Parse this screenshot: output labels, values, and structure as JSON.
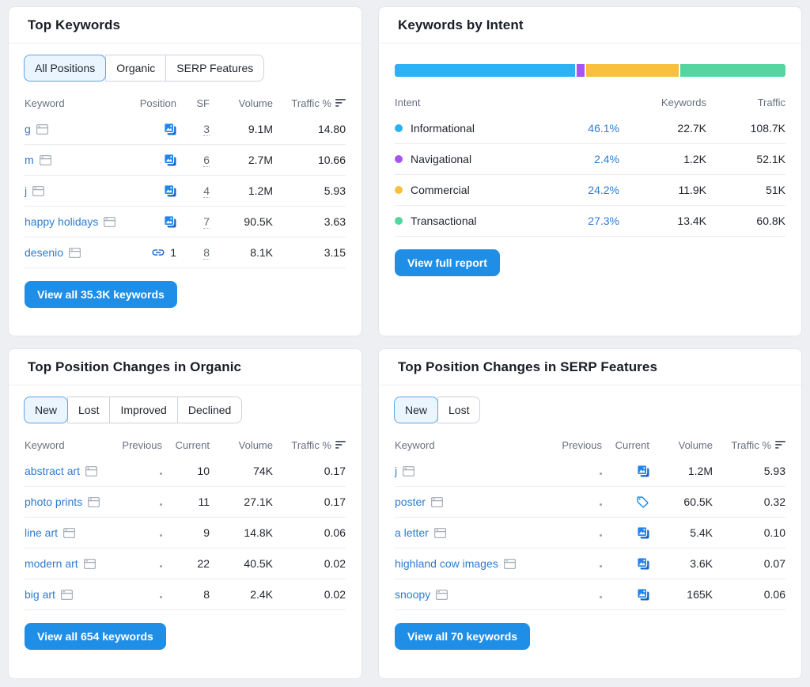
{
  "top_keywords": {
    "title": "Top Keywords",
    "tabs": {
      "all": "All Positions",
      "organic": "Organic",
      "serp": "SERP Features"
    },
    "columns": {
      "keyword": "Keyword",
      "position": "Position",
      "sf": "SF",
      "volume": "Volume",
      "traffic": "Traffic %"
    },
    "rows": [
      {
        "keyword": "g",
        "position_icon": "images",
        "sf": "3",
        "volume": "9.1M",
        "traffic": "14.80"
      },
      {
        "keyword": "m",
        "position_icon": "images",
        "sf": "6",
        "volume": "2.7M",
        "traffic": "10.66"
      },
      {
        "keyword": "j",
        "position_icon": "images",
        "sf": "4",
        "volume": "1.2M",
        "traffic": "5.93"
      },
      {
        "keyword": "happy holidays",
        "position_icon": "images",
        "sf": "7",
        "volume": "90.5K",
        "traffic": "3.63"
      },
      {
        "keyword": "desenio",
        "position_icon": "link",
        "position_value": "1",
        "sf": "8",
        "volume": "8.1K",
        "traffic": "3.15"
      }
    ],
    "button": "View all 35.3K keywords"
  },
  "keywords_by_intent": {
    "title": "Keywords by Intent",
    "columns": {
      "intent": "Intent",
      "keywords": "Keywords",
      "traffic": "Traffic"
    },
    "rows": [
      {
        "label": "Informational",
        "color": "#2BB2F4",
        "value": 46.1,
        "percent": "46.1%",
        "keywords": "22.7K",
        "traffic": "108.7K"
      },
      {
        "label": "Navigational",
        "color": "#A855F0",
        "value": 2.4,
        "percent": "2.4%",
        "keywords": "1.2K",
        "traffic": "52.1K"
      },
      {
        "label": "Commercial",
        "color": "#F7C03E",
        "value": 24.2,
        "percent": "24.2%",
        "keywords": "11.9K",
        "traffic": "51K"
      },
      {
        "label": "Transactional",
        "color": "#55D5A0",
        "value": 27.3,
        "percent": "27.3%",
        "keywords": "13.4K",
        "traffic": "60.8K"
      }
    ],
    "button": "View full report"
  },
  "organic_changes": {
    "title": "Top Position Changes in Organic",
    "tabs": {
      "new": "New",
      "lost": "Lost",
      "improved": "Improved",
      "declined": "Declined"
    },
    "columns": {
      "keyword": "Keyword",
      "previous": "Previous",
      "current": "Current",
      "volume": "Volume",
      "traffic": "Traffic %"
    },
    "rows": [
      {
        "keyword": "abstract art",
        "previous": "dot",
        "current": "10",
        "volume": "74K",
        "traffic": "0.17"
      },
      {
        "keyword": "photo prints",
        "previous": "dot",
        "current": "11",
        "volume": "27.1K",
        "traffic": "0.17"
      },
      {
        "keyword": "line art",
        "previous": "dot",
        "current": "9",
        "volume": "14.8K",
        "traffic": "0.06"
      },
      {
        "keyword": "modern art",
        "previous": "dot",
        "current": "22",
        "volume": "40.5K",
        "traffic": "0.02"
      },
      {
        "keyword": "big art",
        "previous": "dot",
        "current": "8",
        "volume": "2.4K",
        "traffic": "0.02"
      }
    ],
    "button": "View all 654 keywords"
  },
  "serp_changes": {
    "title": "Top Position Changes in SERP Features",
    "tabs": {
      "new": "New",
      "lost": "Lost"
    },
    "columns": {
      "keyword": "Keyword",
      "previous": "Previous",
      "current": "Current",
      "volume": "Volume",
      "traffic": "Traffic %"
    },
    "rows": [
      {
        "keyword": "j",
        "previous": "dot",
        "current_icon": "images",
        "volume": "1.2M",
        "traffic": "5.93"
      },
      {
        "keyword": "poster",
        "previous": "dot",
        "current_icon": "tag",
        "volume": "60.5K",
        "traffic": "0.32"
      },
      {
        "keyword": "a letter",
        "previous": "dot",
        "current_icon": "images",
        "volume": "5.4K",
        "traffic": "0.10"
      },
      {
        "keyword": "highland cow images",
        "previous": "dot",
        "current_icon": "images",
        "volume": "3.6K",
        "traffic": "0.07"
      },
      {
        "keyword": "snoopy",
        "previous": "dot",
        "current_icon": "images",
        "volume": "165K",
        "traffic": "0.06"
      }
    ],
    "button": "View all 70 keywords"
  },
  "colors": {
    "accent_blue": "#1F8EE7",
    "link_blue": "#2E7CD0",
    "intent_blue": "#2BB2F4",
    "intent_purple": "#A855F0",
    "intent_orange": "#F7C03E",
    "intent_green": "#55D5A0"
  }
}
